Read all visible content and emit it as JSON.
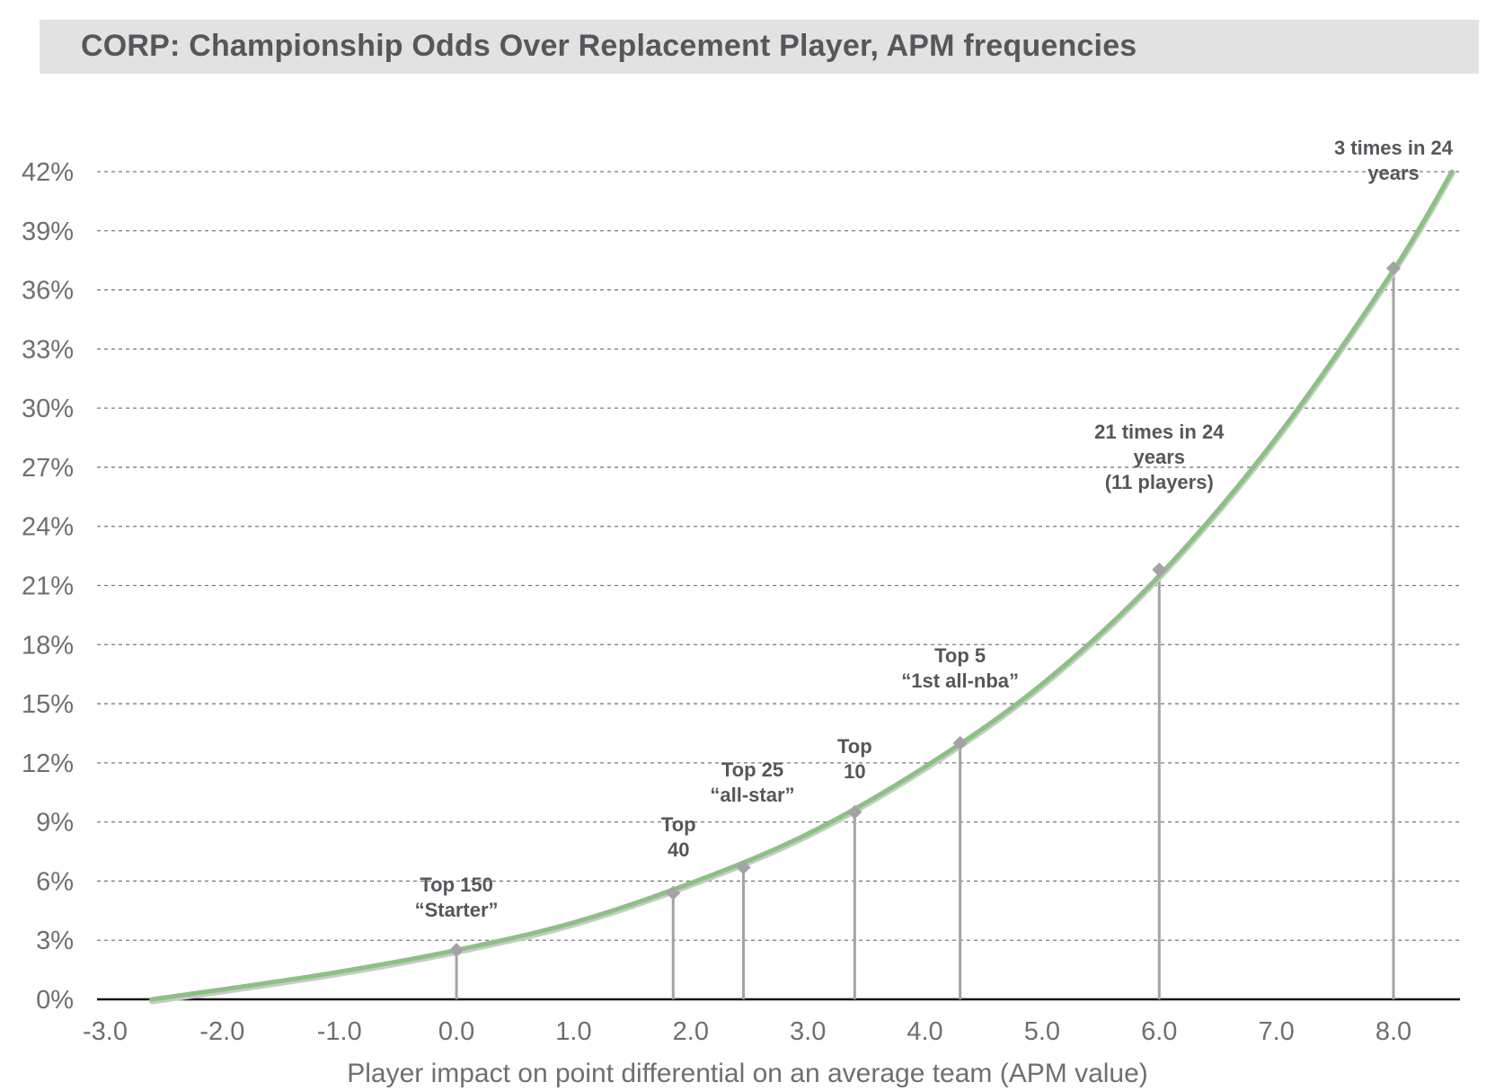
{
  "chart_data": {
    "type": "line",
    "title": "CORP: Championship Odds Over Replacement Player, APM frequencies",
    "xlabel": "Player impact on point differential on an average team (APM value)",
    "ylabel": "",
    "xlim": [
      -3.0,
      8.5
    ],
    "ylim": [
      0,
      42
    ],
    "x_ticks": [
      "-3.0",
      "-2.0",
      "-1.0",
      "0.0",
      "1.0",
      "2.0",
      "3.0",
      "4.0",
      "5.0",
      "6.0",
      "7.0",
      "8.0"
    ],
    "y_ticks": [
      "0%",
      "3%",
      "6%",
      "9%",
      "12%",
      "15%",
      "18%",
      "21%",
      "24%",
      "27%",
      "30%",
      "33%",
      "36%",
      "39%",
      "42%"
    ],
    "grid": "horizontal dashed",
    "series": [
      {
        "color": "#8cc084",
        "x": [
          -2.6,
          -2.0,
          -1.0,
          0.0,
          1.0,
          2.0,
          3.0,
          4.0,
          5.0,
          6.0,
          7.0,
          8.0,
          8.5
        ],
        "y": [
          0.0,
          0.5,
          1.4,
          2.5,
          3.9,
          5.9,
          8.4,
          11.8,
          16.0,
          21.5,
          28.5,
          37.0,
          42.0
        ]
      }
    ],
    "markers": [
      {
        "x": 0.0,
        "y": 2.5,
        "label": [
          "Top 150",
          "“Starter”"
        ]
      },
      {
        "x": 1.85,
        "y": 5.4,
        "label": [
          "Top",
          "40"
        ]
      },
      {
        "x": 2.45,
        "y": 6.7,
        "label": [
          "Top 25",
          "“all-star”"
        ]
      },
      {
        "x": 3.4,
        "y": 9.5,
        "label": [
          "Top",
          "10"
        ]
      },
      {
        "x": 4.3,
        "y": 13.0,
        "label": [
          "Top 5",
          "“1st all-nba”"
        ]
      },
      {
        "x": 6.0,
        "y": 21.8,
        "label": [
          "21 times in 24",
          "years",
          "(11 players)"
        ]
      },
      {
        "x": 8.0,
        "y": 37.1,
        "label": [
          "3 times in 24",
          "years"
        ]
      }
    ],
    "colors": {
      "line": "#8cc084",
      "marker": "#a3a3a6",
      "stem": "#a3a3a6",
      "grid": "#7a7a7a",
      "text": "#55575b",
      "title_bg": "#e2e2e2"
    }
  }
}
